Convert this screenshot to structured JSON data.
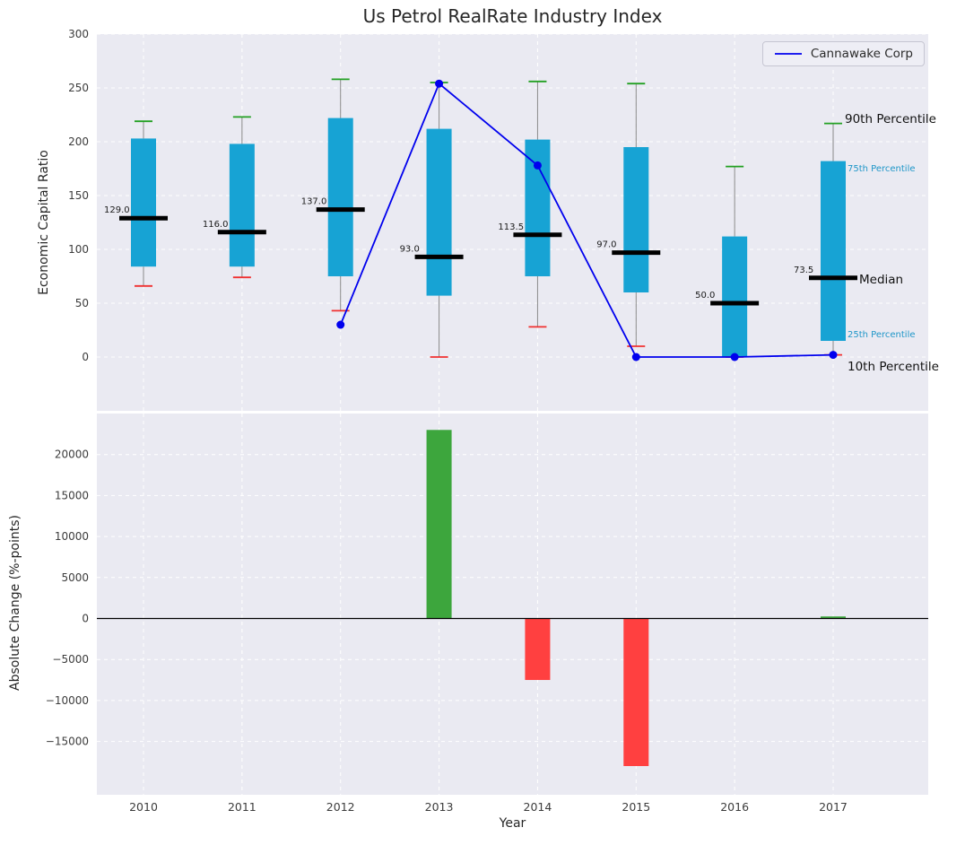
{
  "figure": {
    "title": "Us Petrol RealRate Industry Index",
    "legend_label": "Cannawake Corp",
    "bg": "#ffffff",
    "axes_bg": "#eaeaf2"
  },
  "chart_data": [
    {
      "type": "boxplot+line",
      "title": "Us Petrol RealRate Industry Index",
      "ylabel": "Economic Capital Ratio",
      "ylim": [
        -50,
        300
      ],
      "grid": true,
      "legend_position": "upper right",
      "yticks": [
        {
          "v": 0,
          "label": "0"
        },
        {
          "v": 50,
          "label": "50"
        },
        {
          "v": 100,
          "label": "100"
        },
        {
          "v": 150,
          "label": "150"
        },
        {
          "v": 200,
          "label": "200"
        },
        {
          "v": 250,
          "label": "250"
        },
        {
          "v": 300,
          "label": "300"
        }
      ],
      "categories": [
        "2010",
        "2011",
        "2012",
        "2013",
        "2014",
        "2015",
        "2016",
        "2017"
      ],
      "box_color": "#17a3d4",
      "median_color": "#000000",
      "whisker_color": "#8a8a8a",
      "p90_cap_color": "#22a022",
      "p10_cap_color": "#f03030",
      "boxes": [
        {
          "category": "2010",
          "p10": 66,
          "q1": 84,
          "median": 129.0,
          "q3": 203,
          "p90": 219
        },
        {
          "category": "2011",
          "p10": 74,
          "q1": 84,
          "median": 116.0,
          "q3": 198,
          "p90": 223
        },
        {
          "category": "2012",
          "p10": 43,
          "q1": 75,
          "median": 137.0,
          "q3": 222,
          "p90": 258
        },
        {
          "category": "2013",
          "p10": 0,
          "q1": 57,
          "median": 93.0,
          "q3": 212,
          "p90": 255
        },
        {
          "category": "2014",
          "p10": 28,
          "q1": 75,
          "median": 113.5,
          "q3": 202,
          "p90": 256
        },
        {
          "category": "2015",
          "p10": 10,
          "q1": 60,
          "median": 97.0,
          "q3": 195,
          "p90": 254
        },
        {
          "category": "2016",
          "p10": 0,
          "q1": 0,
          "median": 50.0,
          "q3": 112,
          "p90": 177
        },
        {
          "category": "2017",
          "p10": 2,
          "q1": 15,
          "median": 73.5,
          "q3": 182,
          "p90": 217
        }
      ],
      "median_labels": [
        "129.0",
        "116.0",
        "137.0",
        "93.0",
        "113.5",
        "97.0",
        "50.0",
        "73.5"
      ],
      "line_series": {
        "name": "Cannawake Corp",
        "color": "#0000ee",
        "x": [
          "2012",
          "2013",
          "2014",
          "2015",
          "2016",
          "2017"
        ],
        "values": [
          30,
          254,
          178,
          0,
          0,
          2
        ]
      },
      "annotations": [
        {
          "text": "90th Percentile",
          "color": "#111111",
          "size": 13.5
        },
        {
          "text": "75th Percentile",
          "color": "#1e96c8",
          "size": 10
        },
        {
          "text": "Median",
          "color": "#111111",
          "size": 13.5
        },
        {
          "text": "25th Percentile",
          "color": "#1e96c8",
          "size": 10
        },
        {
          "text": "10th Percentile",
          "color": "#111111",
          "size": 13.5
        }
      ]
    },
    {
      "type": "bar",
      "ylabel": "Absolute Change (%-points)",
      "xlabel": "Year",
      "ylim": [
        -21500,
        25000
      ],
      "yticks": [
        {
          "v": -15000,
          "label": "−15000"
        },
        {
          "v": -10000,
          "label": "−10000"
        },
        {
          "v": -5000,
          "label": "−5000"
        },
        {
          "v": 0,
          "label": "0"
        },
        {
          "v": 5000,
          "label": "5000"
        },
        {
          "v": 10000,
          "label": "10000"
        },
        {
          "v": 15000,
          "label": "15000"
        },
        {
          "v": 20000,
          "label": "20000"
        }
      ],
      "categories": [
        "2010",
        "2011",
        "2012",
        "2013",
        "2014",
        "2015",
        "2016",
        "2017"
      ],
      "values": [
        0,
        0,
        0,
        23000,
        -7500,
        -18000,
        0,
        250
      ],
      "positive_color": "#3da63d",
      "negative_color": "#ff4040",
      "zero_line_color": "#000000"
    }
  ]
}
